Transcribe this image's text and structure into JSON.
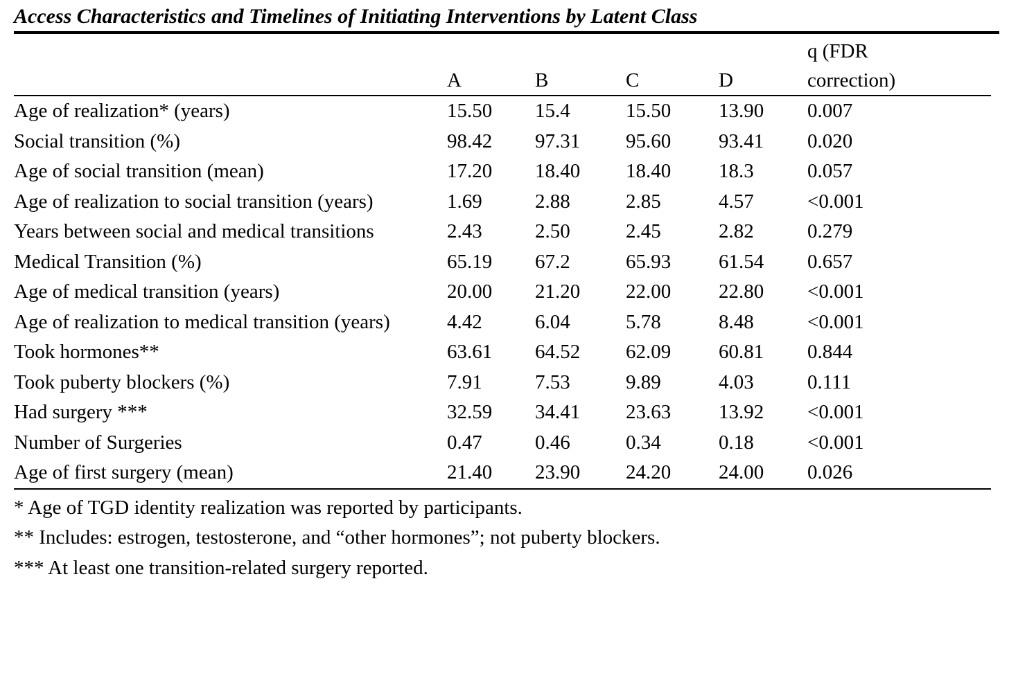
{
  "title": "Access Characteristics and Timelines of Initiating Interventions by Latent Class",
  "table": {
    "columns": [
      "A",
      "B",
      "C",
      "D",
      "q (FDR correction)"
    ],
    "rows": [
      {
        "label": "Age of realization* (years)",
        "values": [
          "15.50",
          "15.4",
          "15.50",
          "13.90",
          "0.007"
        ]
      },
      {
        "label": "Social transition (%)",
        "values": [
          "98.42",
          "97.31",
          "95.60",
          "93.41",
          "0.020"
        ]
      },
      {
        "label": "Age of social transition (mean)",
        "values": [
          "17.20",
          "18.40",
          "18.40",
          "18.3",
          "0.057"
        ]
      },
      {
        "label": "Age of realization to social transition (years)",
        "values": [
          "1.69",
          "2.88",
          "2.85",
          "4.57",
          "<0.001"
        ]
      },
      {
        "label": "Years between social and medical transitions",
        "values": [
          "2.43",
          "2.50",
          "2.45",
          "2.82",
          "0.279"
        ]
      },
      {
        "label": "Medical Transition (%)",
        "values": [
          "65.19",
          "67.2",
          "65.93",
          "61.54",
          "0.657"
        ]
      },
      {
        "label": "Age of medical transition (years)",
        "values": [
          "20.00",
          "21.20",
          "22.00",
          "22.80",
          "<0.001"
        ]
      },
      {
        "label": "Age of realization to medical transition (years)",
        "values": [
          "4.42",
          "6.04",
          "5.78",
          "8.48",
          "<0.001"
        ]
      },
      {
        "label": "Took hormones**",
        "values": [
          "63.61",
          "64.52",
          "62.09",
          "60.81",
          "0.844"
        ]
      },
      {
        "label": "Took puberty blockers (%)",
        "values": [
          "7.91",
          "7.53",
          "9.89",
          "4.03",
          "0.111"
        ]
      },
      {
        "label": "Had surgery ***",
        "values": [
          "32.59",
          "34.41",
          "23.63",
          "13.92",
          "<0.001"
        ]
      },
      {
        "label": "Number of Surgeries",
        "values": [
          "0.47",
          "0.46",
          "0.34",
          "0.18",
          "<0.001"
        ]
      },
      {
        "label": "Age of first surgery (mean)",
        "values": [
          "21.40",
          "23.90",
          "24.20",
          "24.00",
          "0.026"
        ]
      }
    ]
  },
  "footnotes": [
    "* Age of TGD identity realization was reported by participants.",
    "** Includes: estrogen, testosterone, and “other hormones”; not puberty blockers.",
    "*** At least one transition-related surgery reported."
  ]
}
